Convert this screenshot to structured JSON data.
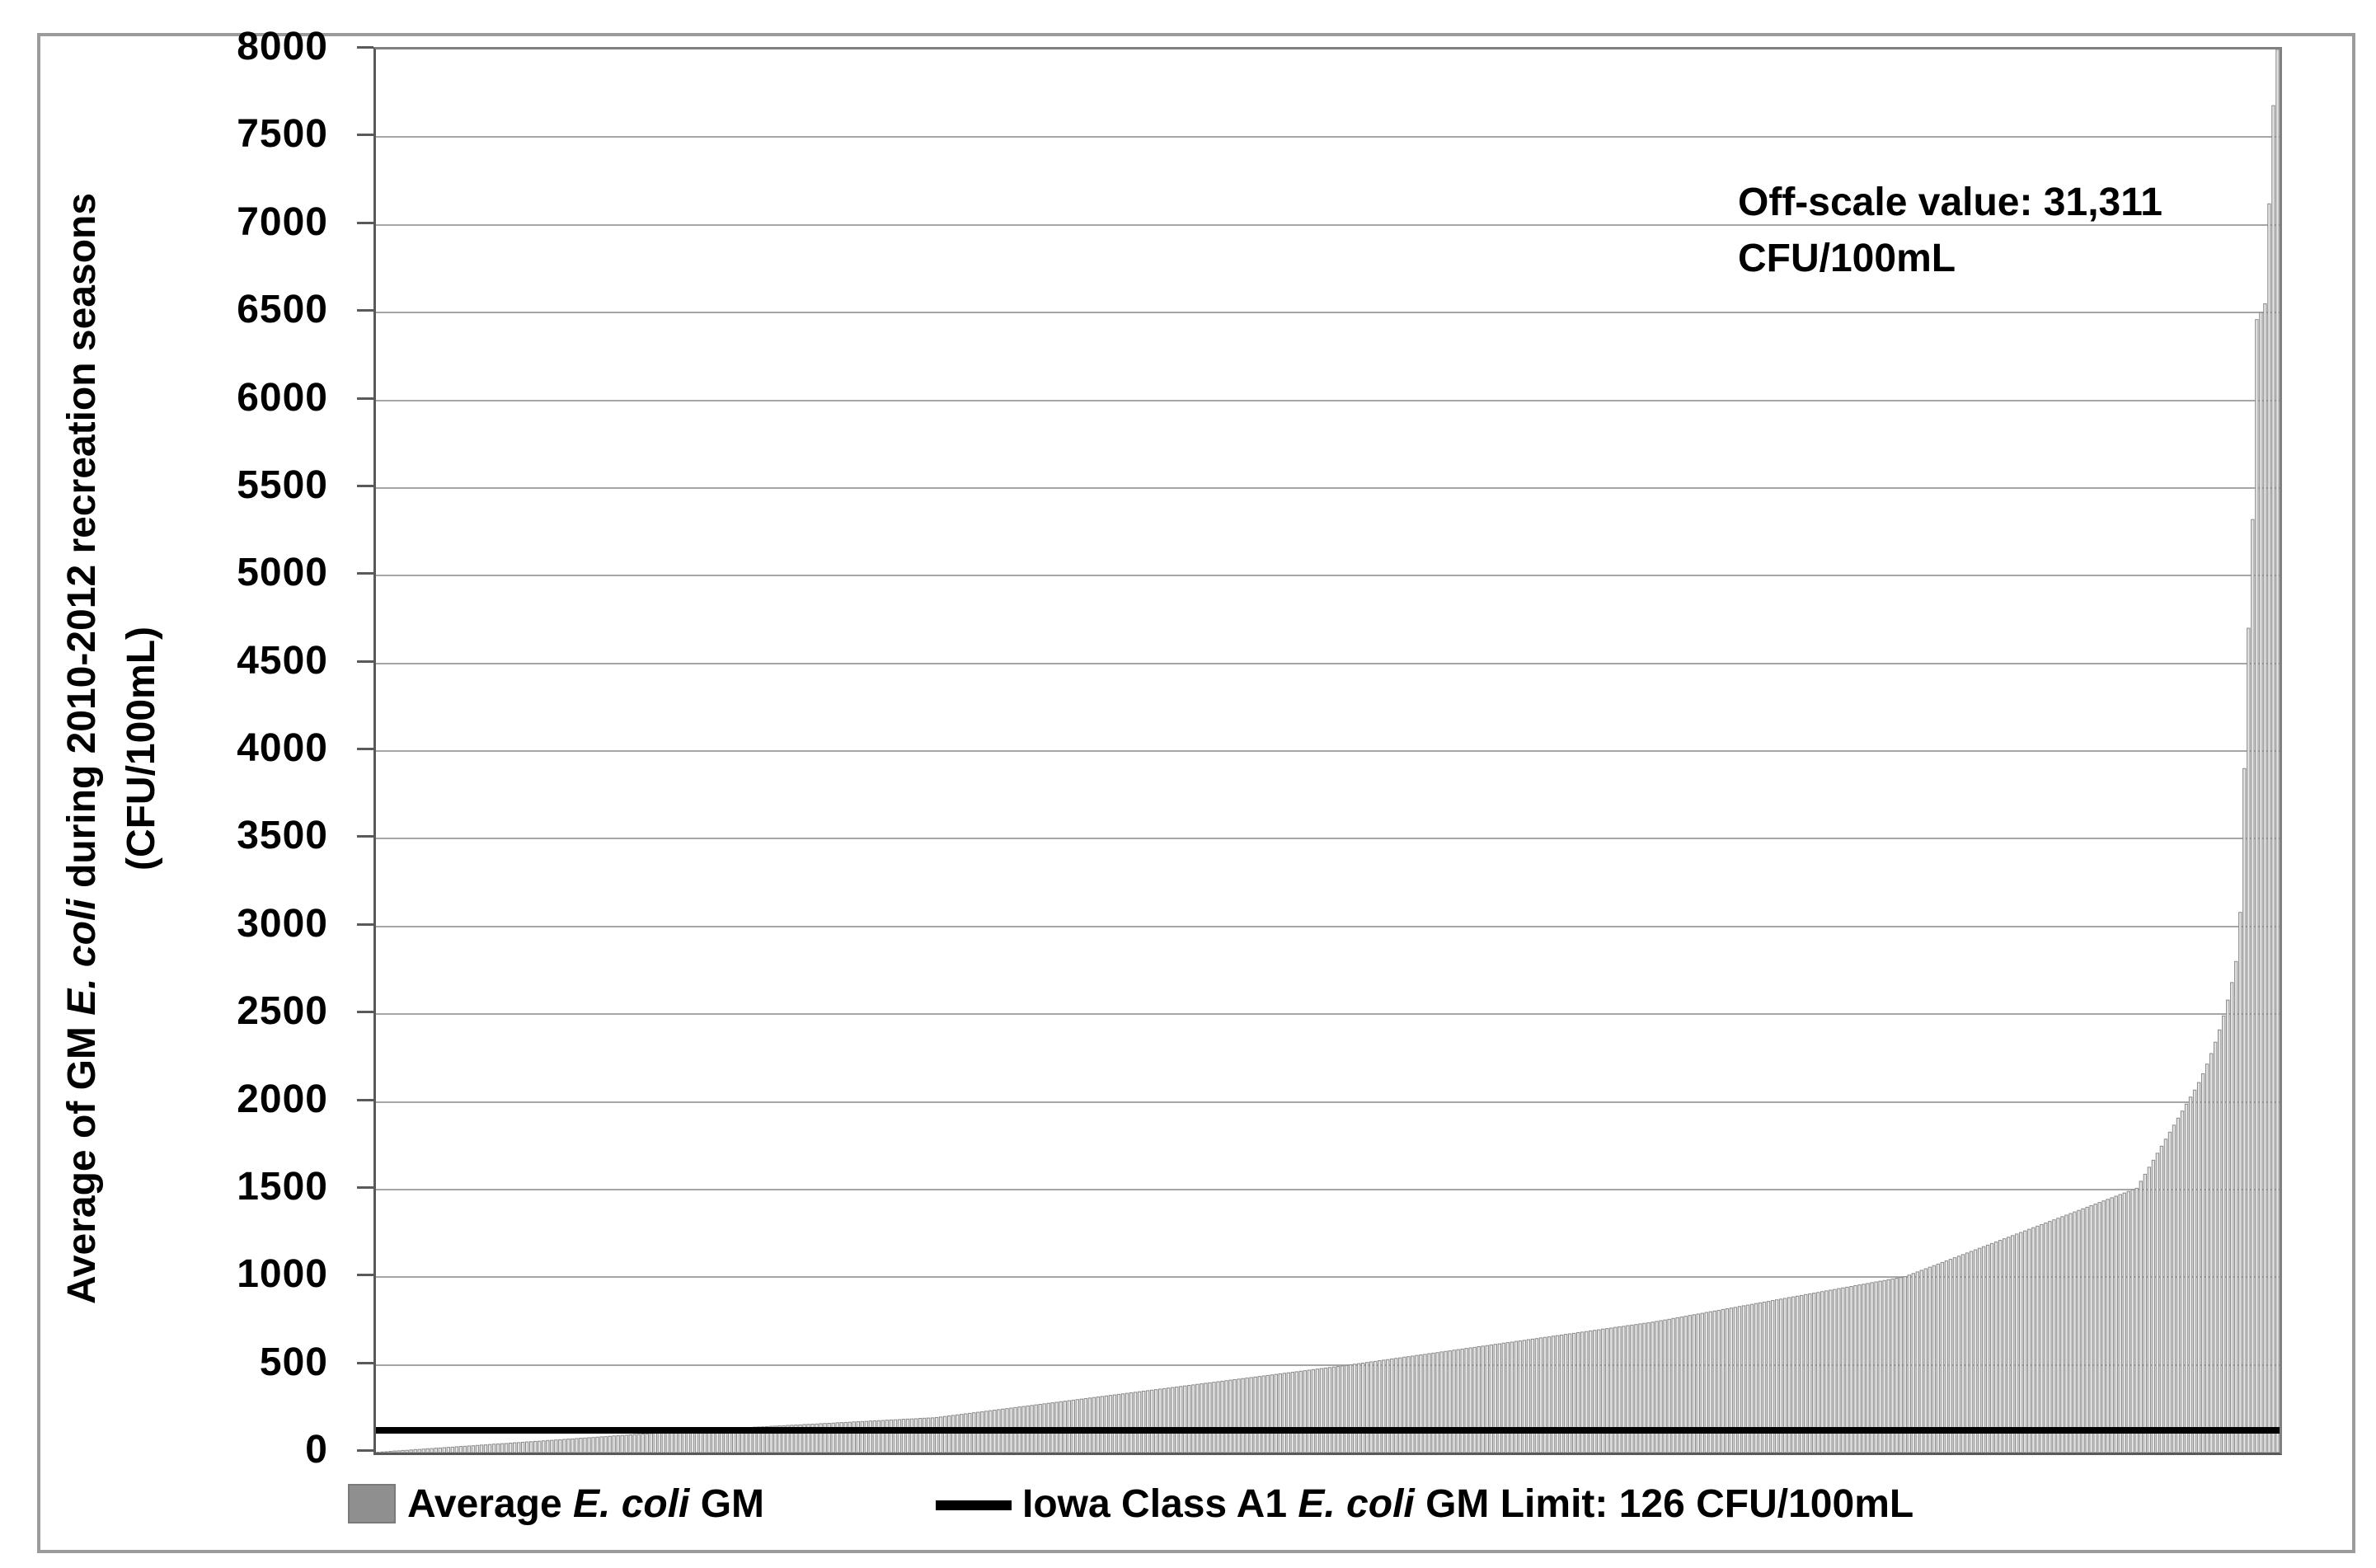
{
  "figure": {
    "y_axis": {
      "title_pre": "Average of GM ",
      "title_italic": "E. coli",
      "title_post": " during 2010-2012 recreation seasons",
      "title_line2": "(CFU/100mL)",
      "ticks": [
        0,
        500,
        1000,
        1500,
        2000,
        2500,
        3000,
        3500,
        4000,
        4500,
        5000,
        5500,
        6000,
        6500,
        7000,
        7500,
        8000
      ]
    },
    "annotation": {
      "line1": "Off-scale value: 31,311",
      "line2": "CFU/100mL"
    },
    "legend": {
      "item1_pre": "Average ",
      "item1_italic": "E. coli",
      "item1_post": " GM",
      "item2_pre": "Iowa Class A1 ",
      "item2_italic": "E. coli",
      "item2_post": " GM Limit: 126 CFU/100mL"
    }
  },
  "chart_data": {
    "type": "bar",
    "title": "",
    "xlabel": "",
    "ylabel": "Average of GM E. coli during 2010-2012 recreation seasons (CFU/100mL)",
    "ylim": [
      0,
      8000
    ],
    "y_tick_step": 500,
    "grid": "horizontal",
    "bar_count": 460,
    "sort_order": "ascending",
    "off_scale_note": "Off-scale value: 31,311 CFU/100mL",
    "off_scale_value": 31311,
    "limit_line": {
      "label": "Iowa Class A1 E. coli GM Limit: 126 CFU/100mL",
      "value": 126
    },
    "legend_position": "bottom",
    "colors": {
      "bar_fill": "#e3e3e3",
      "bar_edge": "#8a8a8a",
      "legend_swatch": "#8f8f8f",
      "limit_line": "#000000",
      "gridline": "#a6a6a6"
    },
    "series": [
      {
        "name": "Average E. coli GM",
        "values": [
          2,
          4,
          5,
          7,
          9,
          10,
          12,
          13,
          15,
          17,
          18,
          20,
          22,
          23,
          25,
          26,
          28,
          30,
          31,
          33,
          35,
          36,
          38,
          39,
          41,
          43,
          44,
          46,
          48,
          49,
          51,
          52,
          54,
          56,
          57,
          59,
          61,
          62,
          64,
          65,
          67,
          69,
          70,
          72,
          73,
          75,
          77,
          78,
          80,
          82,
          83,
          85,
          86,
          88,
          90,
          91,
          93,
          95,
          96,
          98,
          99,
          101,
          103,
          104,
          106,
          107,
          109,
          111,
          112,
          114,
          116,
          117,
          119,
          120,
          122,
          124,
          126,
          127,
          128,
          130,
          131,
          132,
          133,
          135,
          136,
          137,
          138,
          140,
          141,
          142,
          143,
          145,
          146,
          147,
          148,
          150,
          151,
          152,
          153,
          155,
          156,
          157,
          158,
          160,
          161,
          162,
          163,
          165,
          166,
          167,
          168,
          170,
          171,
          172,
          173,
          175,
          176,
          177,
          178,
          180,
          181,
          182,
          183,
          185,
          186,
          187,
          188,
          190,
          191,
          192,
          193,
          195,
          196,
          197,
          198,
          200,
          203,
          206,
          209,
          212,
          215,
          218,
          221,
          224,
          227,
          230,
          233,
          236,
          239,
          242,
          245,
          248,
          251,
          254,
          257,
          260,
          263,
          266,
          269,
          272,
          275,
          278,
          281,
          284,
          287,
          290,
          293,
          296,
          299,
          302,
          305,
          308,
          311,
          314,
          317,
          320,
          323,
          326,
          329,
          332,
          335,
          338,
          341,
          344,
          347,
          350,
          353,
          356,
          359,
          362,
          365,
          368,
          371,
          374,
          377,
          380,
          383,
          386,
          389,
          392,
          395,
          398,
          401,
          404,
          407,
          410,
          413,
          416,
          419,
          422,
          425,
          428,
          431,
          434,
          437,
          440,
          443,
          446,
          449,
          452,
          455,
          458,
          461,
          464,
          467,
          470,
          473,
          476,
          479,
          482,
          485,
          488,
          491,
          494,
          497,
          500,
          504,
          507,
          510,
          514,
          517,
          520,
          524,
          527,
          530,
          534,
          537,
          540,
          544,
          547,
          550,
          554,
          557,
          560,
          564,
          567,
          570,
          574,
          577,
          580,
          584,
          587,
          590,
          594,
          597,
          600,
          604,
          607,
          610,
          614,
          617,
          620,
          624,
          627,
          630,
          634,
          637,
          640,
          644,
          647,
          650,
          654,
          657,
          660,
          664,
          667,
          670,
          674,
          677,
          680,
          684,
          687,
          690,
          694,
          697,
          700,
          704,
          707,
          710,
          714,
          717,
          720,
          724,
          727,
          730,
          734,
          737,
          740,
          744,
          748,
          752,
          756,
          760,
          765,
          769,
          773,
          777,
          782,
          786,
          790,
          794,
          799,
          803,
          807,
          811,
          816,
          820,
          824,
          828,
          833,
          837,
          841,
          845,
          850,
          854,
          858,
          862,
          867,
          871,
          875,
          879,
          884,
          888,
          892,
          896,
          901,
          905,
          909,
          913,
          918,
          922,
          926,
          930,
          935,
          939,
          943,
          947,
          952,
          956,
          960,
          964,
          969,
          973,
          977,
          981,
          986,
          990,
          994,
          998,
          1003,
          1012,
          1021,
          1030,
          1039,
          1048,
          1057,
          1066,
          1075,
          1084,
          1093,
          1102,
          1111,
          1120,
          1129,
          1138,
          1147,
          1156,
          1165,
          1174,
          1183,
          1192,
          1201,
          1210,
          1219,
          1228,
          1237,
          1246,
          1255,
          1264,
          1273,
          1282,
          1291,
          1300,
          1309,
          1318,
          1327,
          1336,
          1345,
          1354,
          1363,
          1372,
          1381,
          1390,
          1399,
          1408,
          1417,
          1426,
          1435,
          1444,
          1453,
          1462,
          1471,
          1480,
          1489,
          1498,
          1507,
          1547,
          1587,
          1627,
          1667,
          1707,
          1747,
          1787,
          1827,
          1867,
          1907,
          1947,
          1987,
          2027,
          2067,
          2110,
          2160,
          2215,
          2275,
          2340,
          2410,
          2490,
          2580,
          2680,
          2800,
          3080,
          3900,
          4700,
          5320,
          6460,
          6500,
          6550,
          7120,
          7680,
          31311
        ]
      }
    ]
  }
}
